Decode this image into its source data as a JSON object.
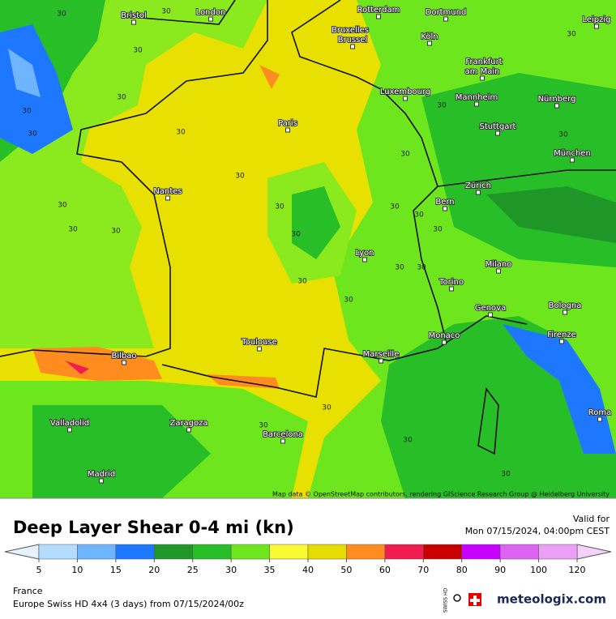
{
  "map": {
    "title": "Deep Layer Shear 0-4 mi (kn)",
    "valid_label": "Valid for",
    "valid_time": "Mon 07/15/2024, 04:00pm CEST",
    "attribution": "Map data © OpenStreetMap contributors, rendering GIScience Research Group @ Heidelberg University",
    "region": "France",
    "model": "Europe Swiss HD 4x4 (3 days) from 07/15/2024/00z",
    "logo_badge": "SWISS HD",
    "logo": "meteologix.com",
    "cities": [
      "Bristol",
      "London",
      "Rotterdam",
      "Dortmund",
      "Leipzig",
      "Bruxelles",
      "Brussel",
      "Köln",
      "Frankfurt",
      "am Main",
      "Luxembourg",
      "Mannheim",
      "Nürnberg",
      "Paris",
      "Stuttgart",
      "München",
      "Nantes",
      "Zürich",
      "Bern",
      "Lyon",
      "Milano",
      "Torino",
      "Genova",
      "Bologna",
      "Monaco",
      "Firenze",
      "Toulouse",
      "Marseille",
      "Bilbao",
      "Roma",
      "Valladolid",
      "Zaragoza",
      "Barcelona",
      "Madrid"
    ],
    "contour_labels": [
      "30",
      "30",
      "30",
      "30",
      "30",
      "30",
      "30",
      "30",
      "30",
      "30",
      "30",
      "30",
      "30",
      "30",
      "30",
      "30",
      "30",
      "30",
      "30",
      "30",
      "30",
      "30",
      "30",
      "30",
      "30",
      "30",
      "30",
      "30"
    ],
    "legend": {
      "ticks": [
        5,
        10,
        15,
        20,
        25,
        30,
        35,
        40,
        50,
        60,
        70,
        80,
        90,
        100,
        120
      ],
      "colors": [
        "#b4dcff",
        "#6eb4ff",
        "#1e78ff",
        "#1e9628",
        "#28be28",
        "#6ee61e",
        "#fafa32",
        "#e6dc00",
        "#ff8c1e",
        "#f01e50",
        "#c80000",
        "#c800ff",
        "#dc64f0",
        "#eba0f5"
      ],
      "under_color": "#e6f2ff",
      "over_color": "#f5d2fa"
    }
  }
}
